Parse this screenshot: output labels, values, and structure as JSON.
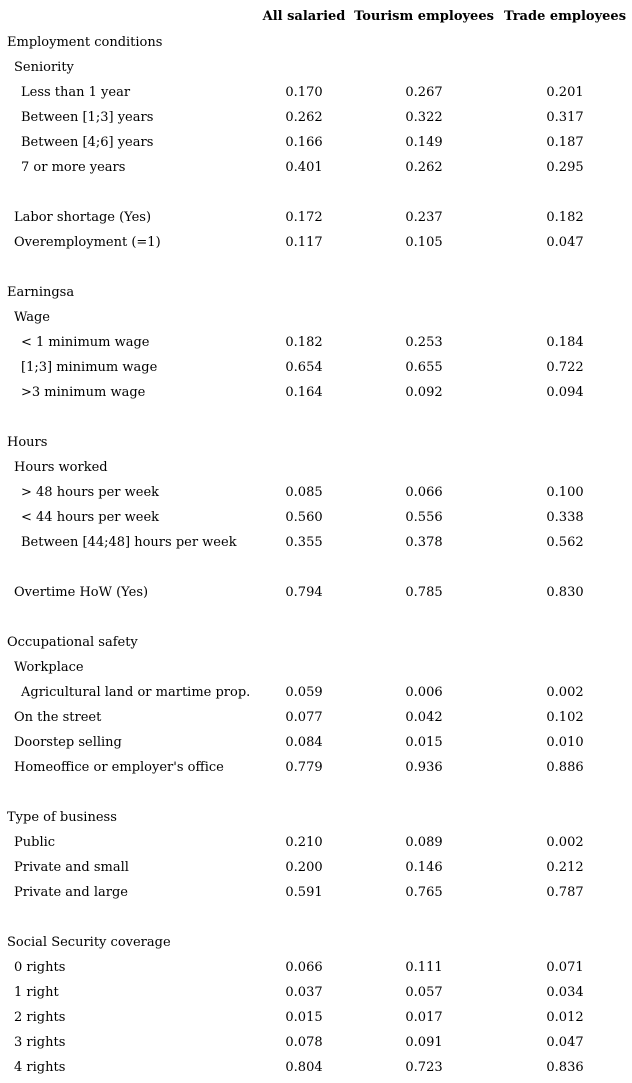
{
  "colors": {
    "text": "#000000",
    "background": "#ffffff"
  },
  "table": {
    "columns": [
      "All salaried",
      "Tourism employees",
      "Trade employees"
    ],
    "rows": [
      {
        "label": "Employment conditions",
        "indent": 0,
        "values": []
      },
      {
        "label": "Seniority",
        "indent": 1,
        "values": []
      },
      {
        "label": "Less than 1 year",
        "indent": 2,
        "values": [
          "0.170",
          "0.267",
          "0.201"
        ]
      },
      {
        "label": "Between [1;3] years",
        "indent": 2,
        "values": [
          "0.262",
          "0.322",
          "0.317"
        ]
      },
      {
        "label": "Between [4;6] years",
        "indent": 2,
        "values": [
          "0.166",
          "0.149",
          "0.187"
        ]
      },
      {
        "label": "7 or more years",
        "indent": 2,
        "values": [
          "0.401",
          "0.262",
          "0.295"
        ]
      },
      {
        "label": "",
        "indent": 0,
        "values": []
      },
      {
        "label": "Labor shortage (Yes)",
        "indent": 1,
        "values": [
          "0.172",
          "0.237",
          "0.182"
        ]
      },
      {
        "label": "Overemployment (=1)",
        "indent": 1,
        "values": [
          "0.117",
          "0.105",
          "0.047"
        ]
      },
      {
        "label": "",
        "indent": 0,
        "values": []
      },
      {
        "label": "Earningsa",
        "indent": 0,
        "values": []
      },
      {
        "label": "Wage",
        "indent": 1,
        "values": []
      },
      {
        "label": "< 1 minimum wage",
        "indent": 2,
        "values": [
          "0.182",
          "0.253",
          "0.184"
        ]
      },
      {
        "label": "[1;3] minimum wage",
        "indent": 2,
        "values": [
          "0.654",
          "0.655",
          "0.722"
        ]
      },
      {
        "label": ">3 minimum wage",
        "indent": 2,
        "values": [
          "0.164",
          "0.092",
          "0.094"
        ]
      },
      {
        "label": "",
        "indent": 0,
        "values": []
      },
      {
        "label": "Hours",
        "indent": 0,
        "values": []
      },
      {
        "label": "Hours worked",
        "indent": 1,
        "values": []
      },
      {
        "label": "> 48 hours per week",
        "indent": 2,
        "values": [
          "0.085",
          "0.066",
          "0.100"
        ]
      },
      {
        "label": "< 44 hours per week",
        "indent": 2,
        "values": [
          "0.560",
          "0.556",
          "0.338"
        ]
      },
      {
        "label": "Between [44;48] hours per week",
        "indent": 2,
        "values": [
          "0.355",
          "0.378",
          "0.562"
        ]
      },
      {
        "label": "",
        "indent": 0,
        "values": []
      },
      {
        "label": "Overtime HoW (Yes)",
        "indent": 1,
        "values": [
          "0.794",
          "0.785",
          "0.830"
        ]
      },
      {
        "label": "",
        "indent": 0,
        "values": []
      },
      {
        "label": "Occupational safety",
        "indent": 0,
        "values": []
      },
      {
        "label": "Workplace",
        "indent": 1,
        "values": []
      },
      {
        "label": "Agricultural land or martime prop.",
        "indent": 2,
        "values": [
          "0.059",
          "0.006",
          "0.002"
        ]
      },
      {
        "label": "On the street",
        "indent": 1,
        "values": [
          "0.077",
          "0.042",
          "0.102"
        ]
      },
      {
        "label": "Doorstep selling",
        "indent": 1,
        "values": [
          "0.084",
          "0.015",
          "0.010"
        ]
      },
      {
        "label": "Homeoffice or employer's office",
        "indent": 1,
        "values": [
          "0.779",
          "0.936",
          "0.886"
        ]
      },
      {
        "label": "",
        "indent": 0,
        "values": []
      },
      {
        "label": "Type of business",
        "indent": 0,
        "values": []
      },
      {
        "label": "Public",
        "indent": 1,
        "values": [
          "0.210",
          "0.089",
          "0.002"
        ]
      },
      {
        "label": "Private and small",
        "indent": 1,
        "values": [
          "0.200",
          "0.146",
          "0.212"
        ]
      },
      {
        "label": "Private and large",
        "indent": 1,
        "values": [
          "0.591",
          "0.765",
          "0.787"
        ]
      },
      {
        "label": "",
        "indent": 0,
        "values": []
      },
      {
        "label": "Social Security coverage",
        "indent": 0,
        "values": []
      },
      {
        "label": "0 rights",
        "indent": 1,
        "values": [
          "0.066",
          "0.111",
          "0.071"
        ]
      },
      {
        "label": "1 right",
        "indent": 1,
        "values": [
          "0.037",
          "0.057",
          "0.034"
        ]
      },
      {
        "label": "2 rights",
        "indent": 1,
        "values": [
          "0.015",
          "0.017",
          "0.012"
        ]
      },
      {
        "label": "3 rights",
        "indent": 1,
        "values": [
          "0.078",
          "0.091",
          "0.047"
        ]
      },
      {
        "label": "4 rights",
        "indent": 1,
        "values": [
          "0.804",
          "0.723",
          "0.836"
        ]
      }
    ]
  }
}
